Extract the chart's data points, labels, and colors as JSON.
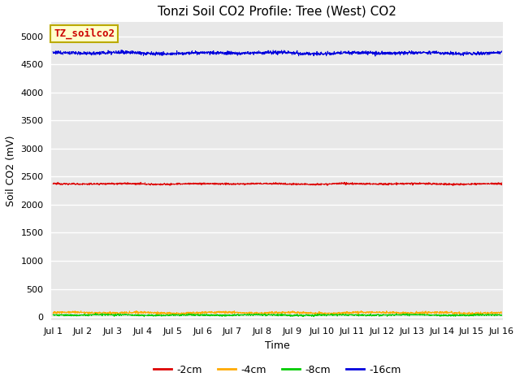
{
  "title": "Tonzi Soil CO2 Profile: Tree (West) CO2",
  "ylabel": "Soil CO2 (mV)",
  "xlabel": "Time",
  "legend_label": "TZ_soilco2",
  "legend_label_color": "#cc0000",
  "legend_box_facecolor": "#ffffcc",
  "legend_box_edgecolor": "#bbaa00",
  "x_start": 0,
  "x_end": 15,
  "n_points": 2000,
  "ylim": [
    -50,
    5250
  ],
  "yticks": [
    0,
    500,
    1000,
    1500,
    2000,
    2500,
    3000,
    3500,
    4000,
    4500,
    5000
  ],
  "xtick_positions": [
    0,
    1,
    2,
    3,
    4,
    5,
    6,
    7,
    8,
    9,
    10,
    11,
    12,
    13,
    14,
    15
  ],
  "xtick_labels": [
    "Jul 1",
    "Jul 2",
    "Jul 3",
    "Jul 4",
    "Jul 5",
    "Jul 6",
    "Jul 7",
    "Jul 8",
    "Jul 9",
    "Jul 10",
    "Jul 11",
    "Jul 12",
    "Jul 13",
    "Jul 14",
    "Jul 15",
    "Jul 16"
  ],
  "plot_bg_color": "#e8e8e8",
  "fig_bg_color": "#ffffff",
  "series": [
    {
      "label": "-2cm",
      "color": "#dd0000",
      "mean": 2370,
      "noise": 8,
      "slow_amp": 5
    },
    {
      "label": "-4cm",
      "color": "#ffaa00",
      "mean": 75,
      "noise": 10,
      "slow_amp": 8
    },
    {
      "label": "-8cm",
      "color": "#00cc00",
      "mean": 35,
      "noise": 8,
      "slow_amp": 5
    },
    {
      "label": "-16cm",
      "color": "#0000dd",
      "mean": 4700,
      "noise": 15,
      "slow_amp": 10
    }
  ],
  "title_fontsize": 11,
  "axis_fontsize": 9,
  "tick_fontsize": 8,
  "legend_fontsize": 9,
  "line_width": 0.7
}
